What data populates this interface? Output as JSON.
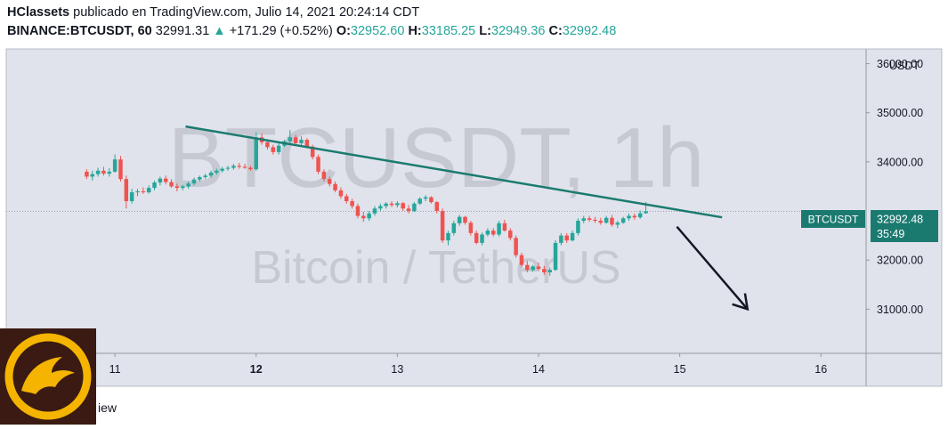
{
  "header": {
    "author": "HClassets",
    "published": "publicado en TradingView.com, Julio 14, 2021 20:24:14 CDT",
    "symbol": "BINANCE:BTCUSDT, 60",
    "last": "32991.31",
    "change": "+171.29 (+0.52%)",
    "open_label": "O:",
    "open": "32952.60",
    "high_label": "H:",
    "high": "33185.25",
    "low_label": "L:",
    "low": "32949.36",
    "close_label": "C:",
    "close": "32992.48"
  },
  "watermark": {
    "line1": "BTCUSDT, 1h",
    "line2": "Bitcoin / TetherUS"
  },
  "price_tag": {
    "symbol": "BTCUSDT",
    "price": "32992.48",
    "countdown": "35:49"
  },
  "footer": {
    "text": "iew"
  },
  "colors": {
    "up": "#26a69a",
    "down": "#ef5350",
    "trendline": "#1b7a70",
    "tag": "#1b7a70"
  },
  "chart_data": {
    "type": "candlestick",
    "currency_label": "USDT",
    "y_ticks": [
      "31000.00",
      "32000.00",
      "34000.00",
      "35000.00",
      "36000.00"
    ],
    "x_ticks": [
      "11",
      "12",
      "13",
      "14",
      "15",
      "16"
    ],
    "ylim": [
      30100,
      36300
    ],
    "xlim": [
      10.23,
      16.32
    ],
    "trendline": {
      "start": [
        11.5,
        34720
      ],
      "end": [
        15.3,
        32870
      ]
    },
    "projection_arrow": {
      "start": [
        14.98,
        32680
      ],
      "end": [
        15.48,
        31000
      ]
    },
    "candles": [
      [
        10.8,
        33800,
        33850,
        33650,
        33700
      ],
      [
        10.84,
        33700,
        33820,
        33620,
        33750
      ],
      [
        10.88,
        33750,
        33880,
        33700,
        33820
      ],
      [
        10.92,
        33820,
        33900,
        33720,
        33760
      ],
      [
        10.96,
        33760,
        33870,
        33700,
        33800
      ],
      [
        11.0,
        33800,
        34150,
        33780,
        34050
      ],
      [
        11.04,
        34050,
        34120,
        33600,
        33650
      ],
      [
        11.08,
        33650,
        33720,
        33050,
        33200
      ],
      [
        11.12,
        33200,
        33450,
        33150,
        33380
      ],
      [
        11.16,
        33380,
        33450,
        33300,
        33400
      ],
      [
        11.2,
        33400,
        33480,
        33350,
        33380
      ],
      [
        11.24,
        33380,
        33520,
        33350,
        33470
      ],
      [
        11.28,
        33470,
        33620,
        33420,
        33580
      ],
      [
        11.32,
        33580,
        33700,
        33520,
        33660
      ],
      [
        11.36,
        33660,
        33720,
        33540,
        33590
      ],
      [
        11.4,
        33590,
        33650,
        33470,
        33500
      ],
      [
        11.44,
        33500,
        33560,
        33400,
        33470
      ],
      [
        11.48,
        33470,
        33530,
        33420,
        33500
      ],
      [
        11.52,
        33500,
        33600,
        33450,
        33560
      ],
      [
        11.56,
        33560,
        33680,
        33520,
        33640
      ],
      [
        11.6,
        33640,
        33720,
        33600,
        33690
      ],
      [
        11.64,
        33690,
        33760,
        33650,
        33720
      ],
      [
        11.68,
        33720,
        33820,
        33680,
        33780
      ],
      [
        11.72,
        33780,
        33860,
        33740,
        33820
      ],
      [
        11.76,
        33820,
        33900,
        33780,
        33860
      ],
      [
        11.8,
        33860,
        33920,
        33820,
        33880
      ],
      [
        11.84,
        33880,
        33960,
        33840,
        33920
      ],
      [
        11.88,
        33920,
        33980,
        33860,
        33900
      ],
      [
        11.92,
        33900,
        33960,
        33860,
        33880
      ],
      [
        11.96,
        33880,
        33920,
        33820,
        33850
      ],
      [
        12.0,
        33850,
        34600,
        33820,
        34500
      ],
      [
        12.04,
        34500,
        34580,
        34350,
        34400
      ],
      [
        12.08,
        34400,
        34450,
        34250,
        34300
      ],
      [
        12.12,
        34300,
        34350,
        34150,
        34200
      ],
      [
        12.16,
        34200,
        34380,
        34150,
        34330
      ],
      [
        12.2,
        34330,
        34450,
        34300,
        34420
      ],
      [
        12.24,
        34420,
        34650,
        34380,
        34500
      ],
      [
        12.28,
        34500,
        34550,
        34350,
        34380
      ],
      [
        12.32,
        34380,
        34520,
        34320,
        34450
      ],
      [
        12.36,
        34450,
        34480,
        34280,
        34310
      ],
      [
        12.4,
        34310,
        34350,
        34050,
        34100
      ],
      [
        12.44,
        34100,
        34150,
        33750,
        33800
      ],
      [
        12.48,
        33800,
        33850,
        33600,
        33650
      ],
      [
        12.52,
        33650,
        33700,
        33500,
        33550
      ],
      [
        12.56,
        33550,
        33600,
        33380,
        33420
      ],
      [
        12.6,
        33420,
        33480,
        33250,
        33300
      ],
      [
        12.64,
        33300,
        33350,
        33150,
        33200
      ],
      [
        12.68,
        33200,
        33250,
        33050,
        33100
      ],
      [
        12.72,
        33100,
        33150,
        32850,
        32900
      ],
      [
        12.76,
        32900,
        32980,
        32780,
        32850
      ],
      [
        12.8,
        32850,
        33000,
        32800,
        32950
      ],
      [
        12.84,
        32950,
        33100,
        32900,
        33050
      ],
      [
        12.88,
        33050,
        33150,
        33000,
        33100
      ],
      [
        12.92,
        33100,
        33180,
        33050,
        33150
      ],
      [
        12.96,
        33150,
        33200,
        33080,
        33120
      ],
      [
        13.0,
        33120,
        33200,
        33070,
        33160
      ],
      [
        13.04,
        33160,
        33180,
        33000,
        33050
      ],
      [
        13.08,
        33050,
        33120,
        32950,
        33000
      ],
      [
        13.12,
        33000,
        33180,
        32980,
        33150
      ],
      [
        13.16,
        33150,
        33280,
        33120,
        33250
      ],
      [
        13.2,
        33250,
        33320,
        33200,
        33280
      ],
      [
        13.24,
        33280,
        33300,
        33150,
        33180
      ],
      [
        13.28,
        33180,
        33200,
        32950,
        33000
      ],
      [
        13.32,
        33000,
        33050,
        32350,
        32400
      ],
      [
        13.36,
        32400,
        32600,
        32300,
        32550
      ],
      [
        13.4,
        32550,
        32800,
        32500,
        32750
      ],
      [
        13.44,
        32750,
        32920,
        32700,
        32880
      ],
      [
        13.48,
        32880,
        32900,
        32720,
        32760
      ],
      [
        13.52,
        32760,
        32800,
        32500,
        32550
      ],
      [
        13.56,
        32550,
        32600,
        32320,
        32350
      ],
      [
        13.6,
        32350,
        32560,
        32300,
        32520
      ],
      [
        13.64,
        32520,
        32650,
        32480,
        32600
      ],
      [
        13.68,
        32600,
        32650,
        32480,
        32520
      ],
      [
        13.72,
        32520,
        32800,
        32480,
        32750
      ],
      [
        13.76,
        32750,
        32820,
        32580,
        32600
      ],
      [
        13.8,
        32600,
        32650,
        32400,
        32450
      ],
      [
        13.84,
        32450,
        32500,
        32050,
        32100
      ],
      [
        13.88,
        32100,
        32150,
        31850,
        31900
      ],
      [
        13.92,
        31900,
        31980,
        31750,
        31800
      ],
      [
        13.96,
        31800,
        31900,
        31760,
        31870
      ],
      [
        14.0,
        31870,
        31950,
        31780,
        31820
      ],
      [
        14.04,
        31820,
        31880,
        31700,
        31750
      ],
      [
        14.08,
        31750,
        31850,
        31680,
        31800
      ],
      [
        14.12,
        31800,
        32400,
        31780,
        32350
      ],
      [
        14.16,
        32350,
        32550,
        32300,
        32500
      ],
      [
        14.2,
        32500,
        32550,
        32350,
        32400
      ],
      [
        14.24,
        32400,
        32600,
        32380,
        32550
      ],
      [
        14.28,
        32550,
        32850,
        32500,
        32800
      ],
      [
        14.32,
        32800,
        32900,
        32750,
        32850
      ],
      [
        14.36,
        32850,
        32900,
        32780,
        32820
      ],
      [
        14.4,
        32820,
        32880,
        32760,
        32800
      ],
      [
        14.44,
        32800,
        32860,
        32720,
        32760
      ],
      [
        14.48,
        32760,
        32900,
        32740,
        32860
      ],
      [
        14.52,
        32860,
        32920,
        32680,
        32720
      ],
      [
        14.56,
        32720,
        32800,
        32650,
        32760
      ],
      [
        14.6,
        32760,
        32880,
        32740,
        32850
      ],
      [
        14.64,
        32850,
        32950,
        32800,
        32900
      ],
      [
        14.68,
        32900,
        32950,
        32820,
        32870
      ],
      [
        14.72,
        32870,
        33010,
        32840,
        32952
      ],
      [
        14.76,
        32952,
        33185,
        32949,
        32992
      ]
    ]
  }
}
